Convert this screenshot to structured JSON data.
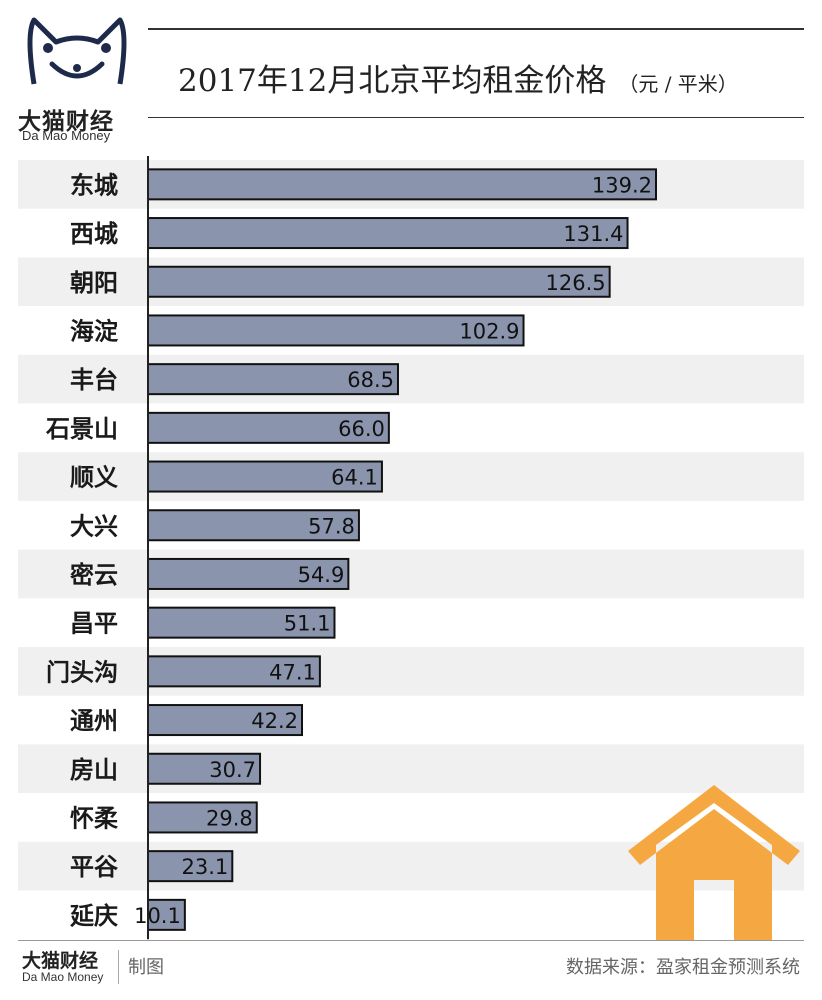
{
  "brand": {
    "name_cn": "大猫财经",
    "name_en": "Da Mao Money"
  },
  "title": "2017年12月北京平均租金价格",
  "unit": "（元 / 平米）",
  "colors": {
    "bar": "#8a95ad",
    "bar_stroke": "#111111",
    "band": "#f0f0f0",
    "house": "#f5a841"
  },
  "chart_data": {
    "type": "bar",
    "orientation": "horizontal",
    "title": "2017年12月北京平均租金价格",
    "unit": "元 / 平米",
    "categories": [
      "东城",
      "西城",
      "朝阳",
      "海淀",
      "丰台",
      "石景山",
      "顺义",
      "大兴",
      "密云",
      "昌平",
      "门头沟",
      "通州",
      "房山",
      "怀柔",
      "平谷",
      "延庆"
    ],
    "values": [
      139.2,
      131.4,
      126.5,
      102.9,
      68.5,
      66.0,
      64.1,
      57.8,
      54.9,
      51.1,
      47.1,
      42.2,
      30.7,
      29.8,
      23.1,
      10.1
    ],
    "value_labels": [
      "139.2",
      "131.4",
      "126.5",
      "102.9",
      "68.5",
      "66.0",
      "64.1",
      "57.8",
      "54.9",
      "51.1",
      "47.1",
      "42.2",
      "30.7",
      "29.8",
      "23.1",
      "10.1"
    ],
    "xlim": [
      0,
      139.2
    ]
  },
  "footer": {
    "brand_cn": "大猫财经",
    "brand_en": "Da Mao Money",
    "credit": "制图",
    "source": "数据来源：盈家租金预测系统"
  }
}
